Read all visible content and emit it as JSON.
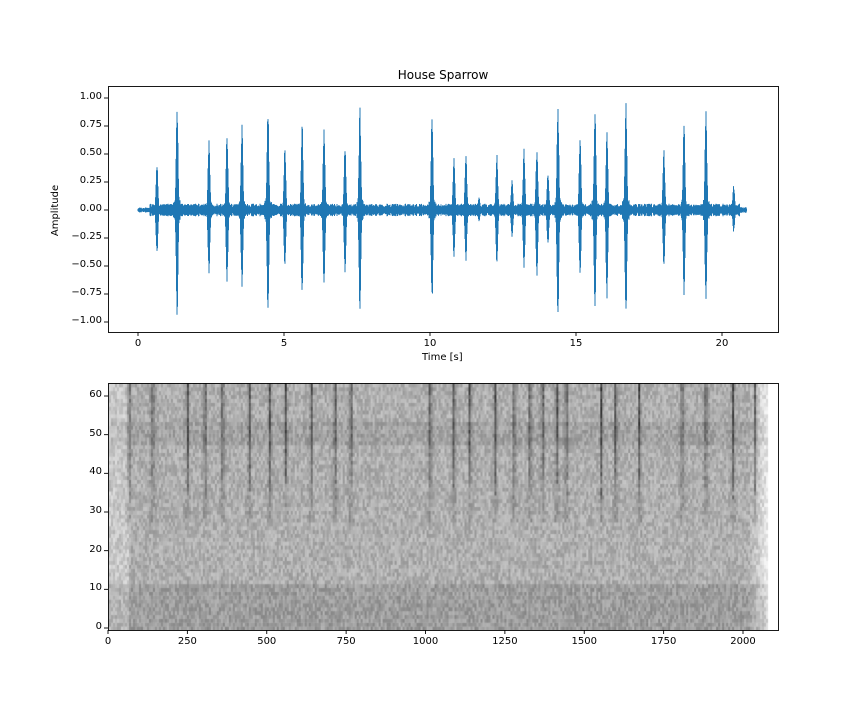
{
  "chart_data": [
    {
      "type": "line",
      "title": "House Sparrow",
      "xlabel": "Time [s]",
      "ylabel": "Amplitude",
      "xlim": [
        -1.05,
        21.9
      ],
      "ylim": [
        -1.1,
        1.1
      ],
      "xticks": [
        0,
        5,
        10,
        15,
        20
      ],
      "xtick_labels": [
        "0",
        "5",
        "10",
        "15",
        "20"
      ],
      "yticks": [
        1.0,
        0.75,
        0.5,
        0.25,
        0.0,
        -0.25,
        -0.5,
        -0.75,
        -1.0
      ],
      "ytick_labels": [
        "1.00",
        "0.75",
        "0.50",
        "0.25",
        "0.00",
        "−0.25",
        "−0.50",
        "−0.75",
        "−1.00"
      ],
      "grid": false,
      "color": "#1f77b4",
      "signal_range_s": [
        0.0,
        20.85
      ],
      "noise_floor": 0.04,
      "bursts": [
        {
          "t": 0.65,
          "pos": 0.43,
          "neg": -0.4
        },
        {
          "t": 1.34,
          "pos": 0.96,
          "neg": -1.0
        },
        {
          "t": 2.43,
          "pos": 0.64,
          "neg": -0.58
        },
        {
          "t": 3.05,
          "pos": 0.71,
          "neg": -0.65
        },
        {
          "t": 3.56,
          "pos": 0.77,
          "neg": -0.65
        },
        {
          "t": 4.45,
          "pos": 0.93,
          "neg": -0.96
        },
        {
          "t": 5.03,
          "pos": 0.56,
          "neg": -0.5
        },
        {
          "t": 5.62,
          "pos": 0.81,
          "neg": -0.8
        },
        {
          "t": 6.37,
          "pos": 0.76,
          "neg": -0.66
        },
        {
          "t": 7.09,
          "pos": 0.6,
          "neg": -0.56
        },
        {
          "t": 7.6,
          "pos": 0.93,
          "neg": -0.96
        },
        {
          "t": 10.07,
          "pos": 0.86,
          "neg": -0.86
        },
        {
          "t": 10.82,
          "pos": 0.48,
          "neg": -0.42
        },
        {
          "t": 11.23,
          "pos": 0.51,
          "neg": -0.46
        },
        {
          "t": 11.68,
          "pos": 0.12,
          "neg": -0.05
        },
        {
          "t": 12.29,
          "pos": 0.5,
          "neg": -0.5
        },
        {
          "t": 12.81,
          "pos": 0.28,
          "neg": -0.25
        },
        {
          "t": 13.22,
          "pos": 0.55,
          "neg": -0.55
        },
        {
          "t": 13.66,
          "pos": 0.57,
          "neg": -0.62
        },
        {
          "t": 14.04,
          "pos": 0.35,
          "neg": -0.32
        },
        {
          "t": 14.38,
          "pos": 1.0,
          "neg": -1.0
        },
        {
          "t": 15.14,
          "pos": 0.66,
          "neg": -0.53
        },
        {
          "t": 15.65,
          "pos": 0.91,
          "neg": -0.87
        },
        {
          "t": 16.06,
          "pos": 0.74,
          "neg": -0.8
        },
        {
          "t": 16.71,
          "pos": 1.0,
          "neg": -1.0
        },
        {
          "t": 18.01,
          "pos": 0.55,
          "neg": -0.55
        },
        {
          "t": 18.7,
          "pos": 0.81,
          "neg": -0.8
        },
        {
          "t": 19.45,
          "pos": 0.9,
          "neg": -0.78
        },
        {
          "t": 20.4,
          "pos": 0.22,
          "neg": -0.18
        }
      ]
    },
    {
      "type": "heatmap",
      "title": "",
      "xlabel": "",
      "ylabel": "",
      "colormap": "gray_r",
      "xlim": [
        0,
        2110
      ],
      "ylim": [
        -0.5,
        63.5
      ],
      "xticks": [
        0,
        250,
        500,
        750,
        1000,
        1250,
        1500,
        1750,
        2000
      ],
      "xtick_labels": [
        "0",
        "250",
        "500",
        "750",
        "1000",
        "1250",
        "1500",
        "1750",
        "2000"
      ],
      "yticks": [
        0,
        10,
        20,
        30,
        40,
        50,
        60
      ],
      "ytick_labels": [
        "0",
        "10",
        "20",
        "30",
        "40",
        "50",
        "60"
      ],
      "data_extent_x": [
        0,
        2075
      ],
      "frequency_bins": 64,
      "bursts_frames": [
        60,
        135,
        245,
        300,
        355,
        440,
        505,
        555,
        635,
        710,
        760,
        1010,
        1085,
        1135,
        1215,
        1275,
        1325,
        1365,
        1410,
        1440,
        1550,
        1595,
        1670,
        1805,
        1880,
        1965,
        2035
      ],
      "burst_band": [
        33,
        63
      ]
    }
  ]
}
